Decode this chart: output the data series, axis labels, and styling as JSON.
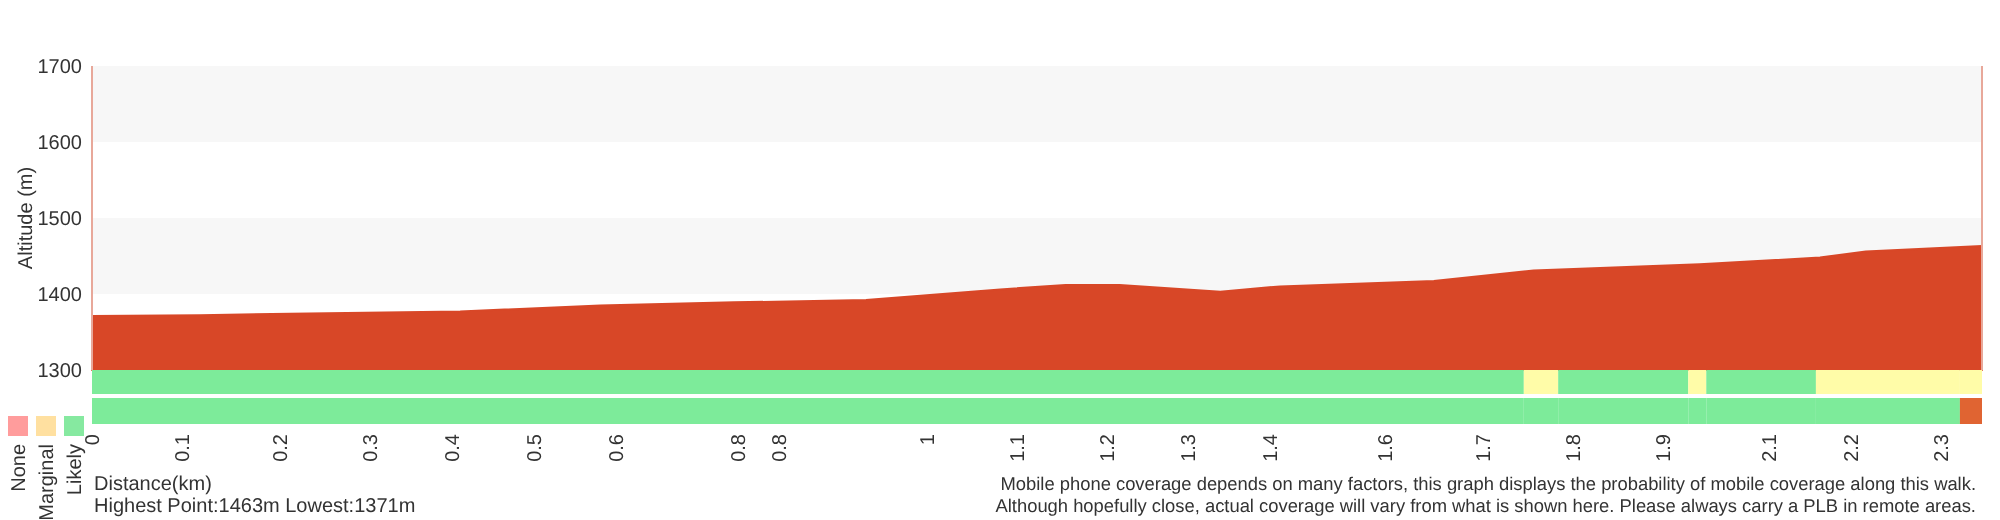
{
  "chart_data": [
    {
      "type": "area",
      "ylabel": "Altitude (m)",
      "xlim": [
        0,
        2.31
      ],
      "ylim": [
        1300,
        1700
      ],
      "yticks": [
        1300,
        1400,
        1500,
        1600,
        1700
      ],
      "tick_labels": "y",
      "grid": false,
      "x": [
        0,
        0.132,
        0.242,
        0.45,
        0.621,
        0.785,
        0.946,
        1.11,
        1.19,
        1.256,
        1.379,
        1.452,
        1.64,
        1.762,
        1.965,
        2.112,
        2.168,
        2.31
      ],
      "series": [
        {
          "color": "#d84727",
          "values": [
            1371,
            1372,
            1374,
            1377,
            1385,
            1389,
            1392,
            1406,
            1412,
            1412,
            1403,
            1410,
            1417,
            1431,
            1439,
            1448,
            1456,
            1463
          ]
        }
      ],
      "bands": [
        {
          "axis": "y",
          "from": 1600,
          "to": 1700,
          "color": "#f7f7f7"
        },
        {
          "axis": "y",
          "from": 1400,
          "to": 1500,
          "color": "#f7f7f7"
        }
      ]
    },
    {
      "type": "bar",
      "orientation": "horizontal",
      "stacked": true,
      "categories": [
        null,
        null
      ],
      "xlabel": "Distance(km)",
      "xlim": [
        0,
        2.31
      ],
      "tick_labels": "x",
      "xticks": [
        0,
        {
          "value": 0.11,
          "label": "0.1"
        },
        {
          "value": 0.23,
          "label": "0.2"
        },
        {
          "value": 0.34,
          "label": "0.3"
        },
        {
          "value": 0.44,
          "label": "0.4"
        },
        {
          "value": 0.54,
          "label": "0.5"
        },
        {
          "value": 0.64,
          "label": "0.6"
        },
        {
          "value": 0.79,
          "label": "0.8"
        },
        {
          "value": 0.84,
          "label": "0.8"
        },
        {
          "value": 1.02,
          "label": "1"
        },
        {
          "value": 1.13,
          "label": "1.1"
        },
        {
          "value": 1.24,
          "label": "1.2"
        },
        {
          "value": 1.34,
          "label": "1.3"
        },
        {
          "value": 1.44,
          "label": "1.4"
        },
        {
          "value": 1.58,
          "label": "1.6"
        },
        1.7,
        {
          "value": 1.81,
          "label": "1.8"
        },
        {
          "value": 1.92,
          "label": "1.9"
        },
        {
          "value": 2.05,
          "label": "2.1"
        },
        {
          "value": 2.15,
          "label": "2.2"
        },
        {
          "value": 2.26,
          "label": "2.3"
        }
      ],
      "series": [
        {
          "colors": [
            "#7deb9a",
            "#7deb9a"
          ],
          "values": [
            1.75,
            1.75
          ]
        },
        {
          "colors": [
            "#fffca8",
            "#7deb9a"
          ],
          "values": [
            0.042,
            0.042
          ]
        },
        {
          "colors": [
            "#7deb9a",
            "#7deb9a"
          ],
          "values": [
            0.159,
            0.159
          ]
        },
        {
          "colors": [
            "#fffca8",
            "#7deb9a"
          ],
          "values": [
            0.022,
            0.022
          ]
        },
        {
          "colors": [
            "#7deb9a",
            "#7deb9a"
          ],
          "values": [
            0.134,
            0.134
          ]
        },
        {
          "colors": [
            "#fffca8",
            "#7deb9a"
          ],
          "values": [
            0.176,
            0.176
          ]
        },
        {
          "colors": [
            "#fffca8",
            "#e06432"
          ],
          "values": [
            0.027,
            0.027
          ]
        }
      ],
      "annotations": [
        "Highest Point:1463m Lowest:1371m",
        "Mobile phone coverage depends on many factors, this graph displays the probability of mobile coverage along this walk.",
        "Although hopefully close, actual coverage will vary from what is shown here. Please always carry a PLB in remote areas."
      ]
    },
    {
      "type": "other",
      "categories": [
        "None",
        "Marginal",
        "Likely"
      ],
      "colors": [
        "#ff9c9c",
        "#ffe0a0",
        "#86e9a0"
      ]
    }
  ]
}
